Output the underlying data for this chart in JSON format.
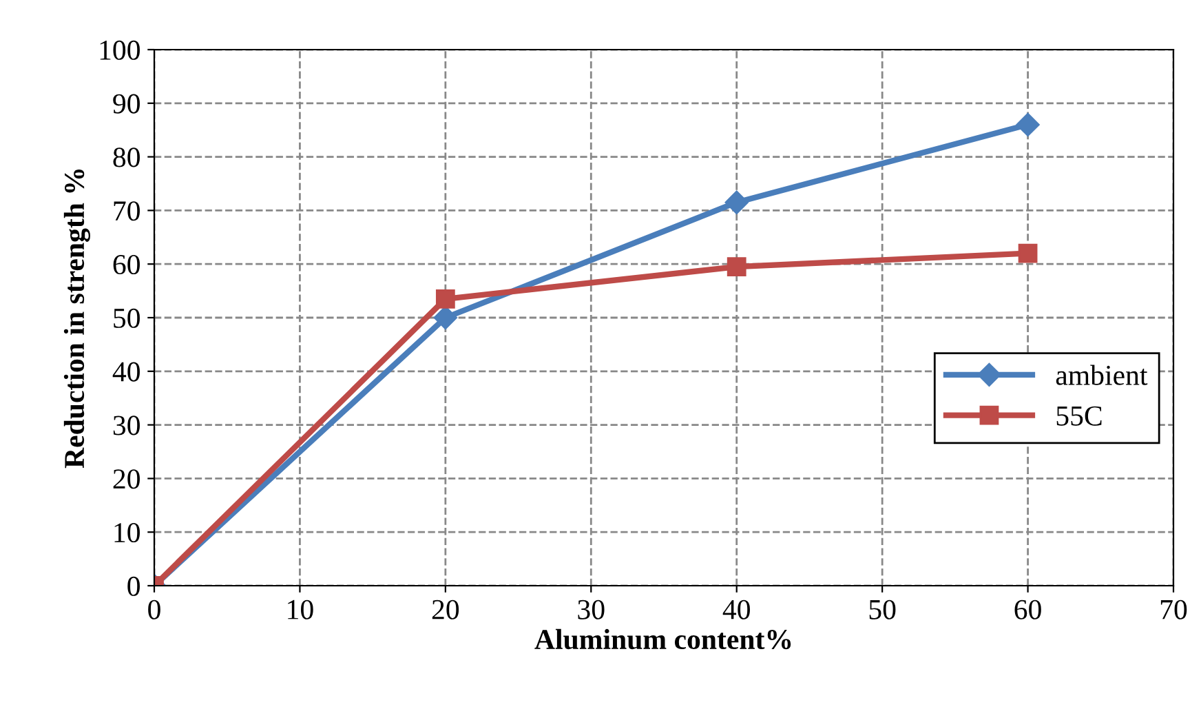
{
  "chart_data": {
    "type": "line",
    "xlabel": "Aluminum content%",
    "ylabel": "Reduction in strength %",
    "xlim": [
      0,
      70
    ],
    "xticks": [
      0,
      10,
      20,
      30,
      40,
      50,
      60,
      70
    ],
    "ylim": [
      0,
      100
    ],
    "yticks": [
      0,
      10,
      20,
      30,
      40,
      50,
      60,
      70,
      80,
      90,
      100
    ],
    "grid": true,
    "legend": "right",
    "line_style": "solid",
    "series": [
      {
        "name": "ambient",
        "color": "#4a7ebb",
        "marker": "diamond",
        "x": [
          0,
          20,
          40,
          60
        ],
        "values": [
          0,
          50,
          71.5,
          86
        ]
      },
      {
        "name": "55C",
        "color": "#be4b48",
        "marker": "square",
        "x": [
          0,
          20,
          40,
          60
        ],
        "values": [
          0,
          53.5,
          59.5,
          62
        ]
      }
    ]
  }
}
